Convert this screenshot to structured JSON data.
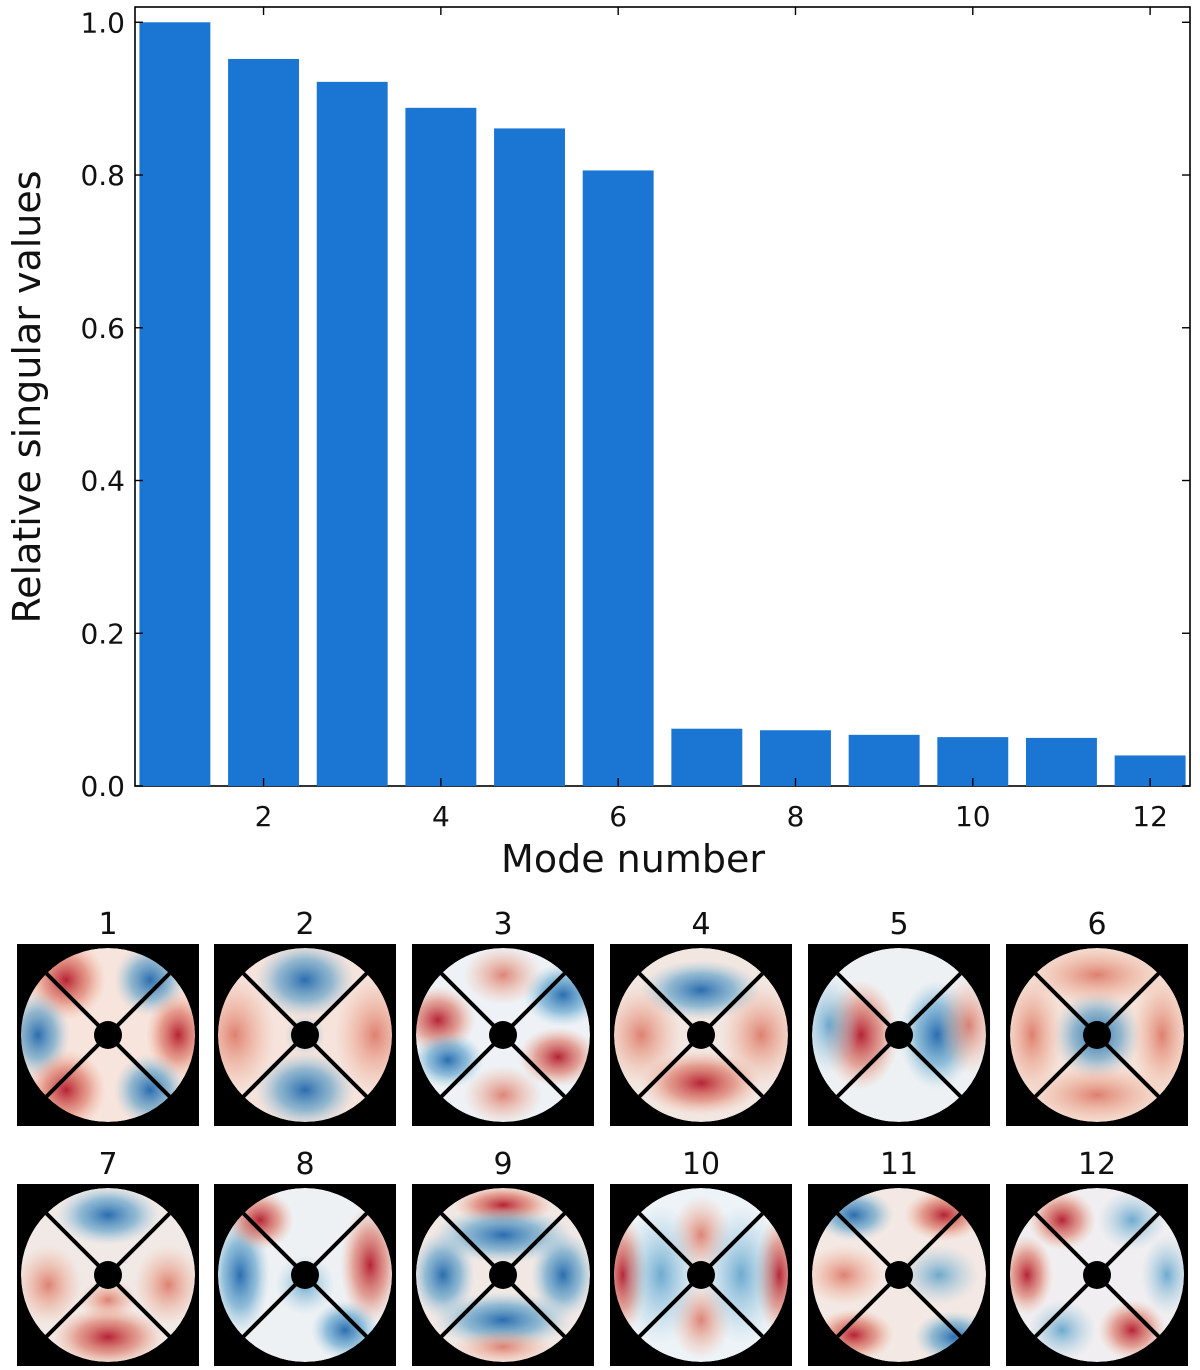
{
  "chart_data": {
    "type": "bar",
    "title": "",
    "xlabel": "Mode number",
    "ylabel": "Relative singular values",
    "categories": [
      1,
      2,
      3,
      4,
      5,
      6,
      7,
      8,
      9,
      10,
      11,
      12
    ],
    "values": [
      1.0,
      0.952,
      0.922,
      0.888,
      0.861,
      0.806,
      0.075,
      0.073,
      0.067,
      0.064,
      0.063,
      0.04
    ],
    "ylim": [
      0.0,
      1.02
    ],
    "xlim": [
      0.55,
      12.45
    ],
    "yticks": [
      "0.0",
      "0.2",
      "0.4",
      "0.6",
      "0.8",
      "1.0"
    ],
    "xticks": [
      "2",
      "4",
      "6",
      "8",
      "10",
      "12"
    ],
    "bar_color": "#1b76d3",
    "grid": false,
    "legend": "none"
  },
  "mode_panels": {
    "titles": [
      "1",
      "2",
      "3",
      "4",
      "5",
      "6",
      "7",
      "8",
      "9",
      "10",
      "11",
      "12"
    ],
    "description_colors": {
      "positive": "#b2182b",
      "negative": "#2166ac",
      "neutral": "#f7f7f7",
      "background": "#000000"
    }
  }
}
